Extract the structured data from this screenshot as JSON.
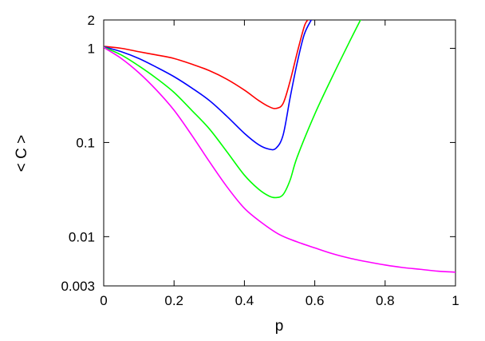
{
  "chart_data": {
    "type": "line",
    "title": "",
    "xlabel": "p",
    "ylabel": "< C >",
    "x_scale": "linear",
    "y_scale": "log",
    "xlim": [
      0,
      1
    ],
    "ylim": [
      0.003,
      2
    ],
    "grid": false,
    "legend": "none",
    "x_ticks": [
      0,
      0.2,
      0.4,
      0.6,
      0.8,
      1
    ],
    "x_tick_labels": [
      "0",
      "0.2",
      "0.4",
      "0.6",
      "0.8",
      "1"
    ],
    "y_ticks": [
      0.003,
      0.01,
      0.1,
      1,
      2
    ],
    "y_tick_labels": [
      "0.003",
      "0.01",
      "0.1",
      "1",
      "2"
    ],
    "series": [
      {
        "color": "#ff0000",
        "x": [
          0,
          0.05,
          0.1,
          0.15,
          0.2,
          0.25,
          0.3,
          0.35,
          0.4,
          0.44,
          0.47,
          0.49,
          0.51,
          0.53,
          0.55,
          0.57,
          0.58
        ],
        "y": [
          1.05,
          1.0,
          0.92,
          0.85,
          0.78,
          0.68,
          0.58,
          0.47,
          0.36,
          0.28,
          0.24,
          0.23,
          0.26,
          0.45,
          0.9,
          1.7,
          2.0
        ]
      },
      {
        "color": "#0000ff",
        "x": [
          0,
          0.05,
          0.1,
          0.15,
          0.2,
          0.25,
          0.3,
          0.35,
          0.4,
          0.44,
          0.47,
          0.49,
          0.51,
          0.53,
          0.55,
          0.57,
          0.59
        ],
        "y": [
          1.04,
          0.92,
          0.78,
          0.63,
          0.5,
          0.38,
          0.28,
          0.19,
          0.125,
          0.095,
          0.085,
          0.087,
          0.12,
          0.3,
          0.7,
          1.4,
          2.0
        ]
      },
      {
        "color": "#00ff00",
        "x": [
          0,
          0.05,
          0.1,
          0.15,
          0.2,
          0.25,
          0.3,
          0.35,
          0.4,
          0.44,
          0.47,
          0.49,
          0.51,
          0.53,
          0.55,
          0.6,
          0.65,
          0.7,
          0.73
        ],
        "y": [
          1.03,
          0.85,
          0.65,
          0.48,
          0.34,
          0.22,
          0.14,
          0.08,
          0.045,
          0.032,
          0.027,
          0.026,
          0.028,
          0.04,
          0.07,
          0.2,
          0.5,
          1.2,
          2.0
        ]
      },
      {
        "color": "#ff00ff",
        "x": [
          0,
          0.05,
          0.1,
          0.15,
          0.2,
          0.25,
          0.3,
          0.35,
          0.4,
          0.45,
          0.5,
          0.55,
          0.6,
          0.65,
          0.7,
          0.75,
          0.8,
          0.85,
          0.9,
          0.95,
          1.0
        ],
        "y": [
          1.02,
          0.78,
          0.55,
          0.36,
          0.22,
          0.12,
          0.063,
          0.034,
          0.02,
          0.014,
          0.0105,
          0.0088,
          0.0076,
          0.0066,
          0.0059,
          0.0054,
          0.005,
          0.0047,
          0.0045,
          0.0043,
          0.0042
        ]
      }
    ]
  }
}
